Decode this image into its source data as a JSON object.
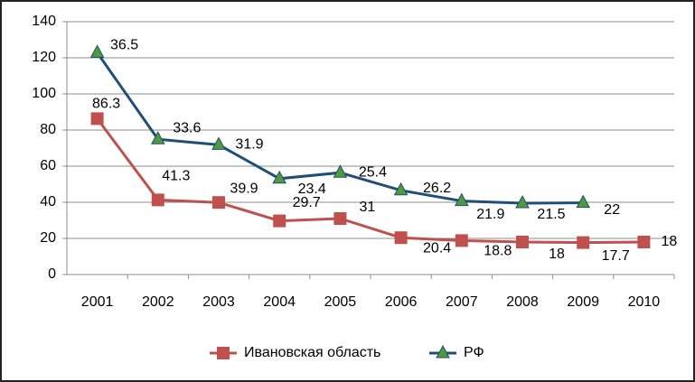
{
  "chart_data": {
    "type": "line",
    "stacked": true,
    "categories": [
      "2001",
      "2002",
      "2003",
      "2004",
      "2005",
      "2006",
      "2007",
      "2008",
      "2009",
      "2010"
    ],
    "series": [
      {
        "name": "Ивановская область",
        "color": "#c0504d",
        "marker": "square",
        "values": [
          86.3,
          41.3,
          39.9,
          29.7,
          31,
          20.4,
          18.8,
          18,
          17.7,
          18
        ]
      },
      {
        "name": "РФ",
        "color": "#1f4e79",
        "marker_color": "#4f9a3a",
        "marker": "triangle",
        "values": [
          36.5,
          33.6,
          31.9,
          23.4,
          25.4,
          26.2,
          21.9,
          21.5,
          22,
          null
        ]
      }
    ],
    "ylim": [
      0,
      140
    ],
    "yticks": [
      0,
      20,
      40,
      60,
      80,
      100,
      120,
      140
    ],
    "grid": true,
    "legend": "bottom"
  }
}
